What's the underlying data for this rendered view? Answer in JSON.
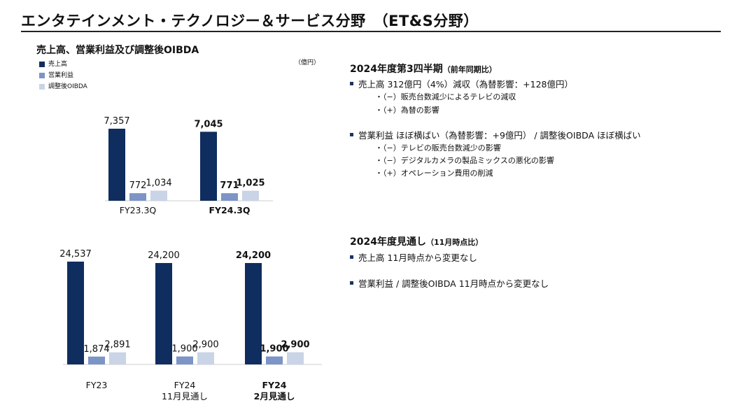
{
  "page": {
    "title": "エンタテインメント・テクノロジー＆サービス分野　（ET&S分野）",
    "subtitle": "売上高、営業利益及び調整後OIBDA",
    "unit": "（億円）"
  },
  "legend": [
    {
      "label": "売上高",
      "color": "#0f2d5e"
    },
    {
      "label": "営業利益",
      "color": "#7c94c6"
    },
    {
      "label": "調整後OIBDA",
      "color": "#c9d4e6"
    }
  ],
  "chart_data": [
    {
      "type": "bar",
      "categories": [
        "FY23.3Q",
        "FY24.3Q"
      ],
      "series": [
        {
          "name": "売上高",
          "values": [
            7357,
            7045
          ]
        },
        {
          "name": "営業利益",
          "values": [
            772,
            771
          ]
        },
        {
          "name": "調整後OIBDA",
          "values": [
            1034,
            1025
          ]
        }
      ],
      "value_labels": [
        [
          "7,357",
          "772",
          "1,034"
        ],
        [
          "7,045",
          "771",
          "1,025"
        ]
      ],
      "bold_category_index": 1,
      "ylim": [
        0,
        7357
      ]
    },
    {
      "type": "bar",
      "categories": [
        "FY23",
        "FY24\n11月見通し",
        "FY24\n2月見通し"
      ],
      "series": [
        {
          "name": "売上高",
          "values": [
            24537,
            24200,
            24200
          ]
        },
        {
          "name": "営業利益",
          "values": [
            1874,
            1900,
            1900
          ]
        },
        {
          "name": "調整後OIBDA",
          "values": [
            2891,
            2900,
            2900
          ]
        }
      ],
      "value_labels": [
        [
          "24,537",
          "1,874",
          "2,891"
        ],
        [
          "24,200",
          "1,900",
          "2,900"
        ],
        [
          "24,200",
          "1,900",
          "2,900"
        ]
      ],
      "bold_category_index": 2,
      "ylim": [
        0,
        24537
      ]
    }
  ],
  "q3": {
    "heading": "2024年度第3四半期",
    "heading_note": "（前年同期比）",
    "bullet1": "売上高 312億円（4%）減収（為替影響：+128億円）",
    "bullet1_subs": [
      "・（−）販売台数減少によるテレビの減収",
      "・（+）為替の影響"
    ],
    "bullet2": "営業利益  ほぼ横ばい（為替影響：+9億円） / 調整後OIBDA  ほぼ横ばい",
    "bullet2_subs": [
      "・（−）テレビの販売台数減少の影響",
      "・（−）デジタルカメラの製品ミックスの悪化の影響",
      "・（+）オペレーション費用の削減"
    ]
  },
  "outlook": {
    "heading": "2024年度見通し",
    "heading_note": "（11月時点比）",
    "bullet1": "売上高  11月時点から変更なし",
    "bullet2": "営業利益 / 調整後OIBDA  11月時点から変更なし"
  }
}
